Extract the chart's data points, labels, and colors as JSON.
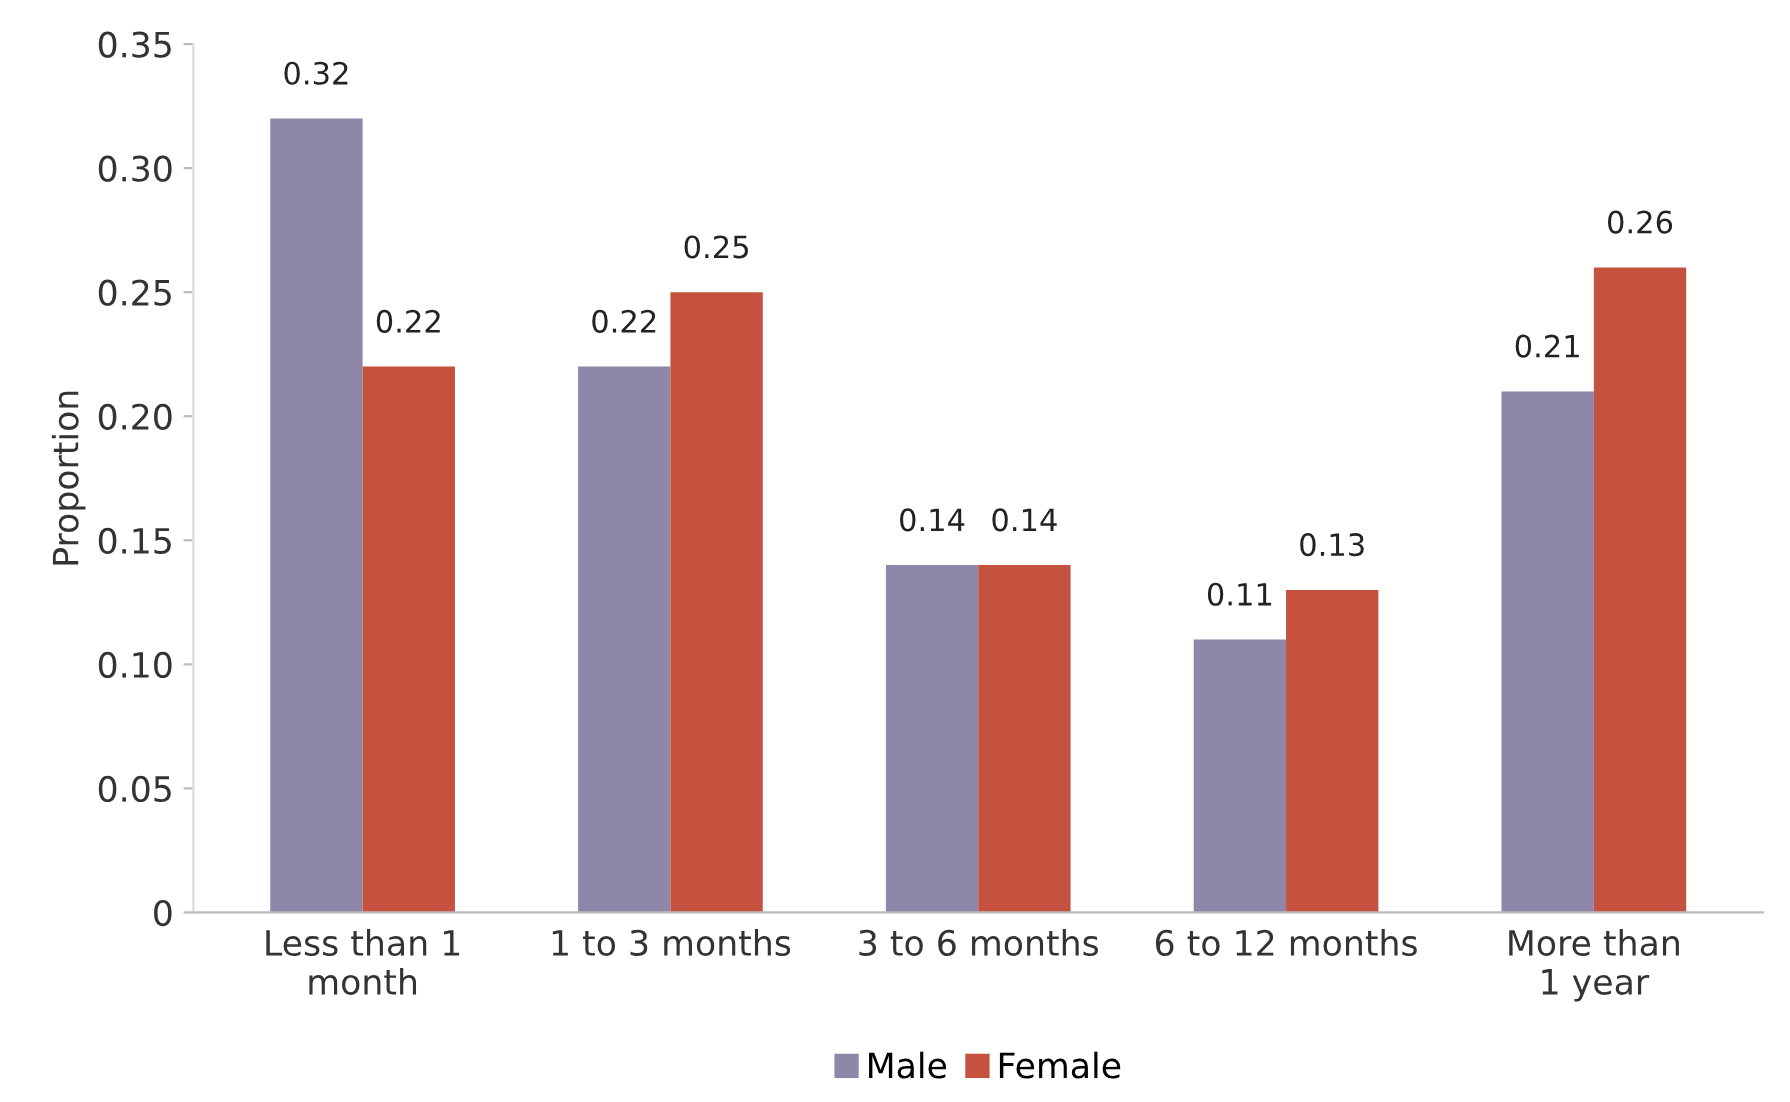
{
  "chart_data": {
    "type": "bar",
    "ylabel": "Proportion",
    "categories": [
      "Less than 1\nmonth",
      "1 to 3 months",
      "3 to 6 months",
      "6 to 12 months",
      "More than\n1 year"
    ],
    "series": [
      {
        "name": "Male",
        "color": "#8e87aa",
        "values": [
          0.32,
          0.22,
          0.14,
          0.11,
          0.21
        ]
      },
      {
        "name": "Female",
        "color": "#c5523f",
        "values": [
          0.22,
          0.25,
          0.14,
          0.13,
          0.26
        ]
      }
    ],
    "ylim": [
      0,
      0.35
    ],
    "yticks": [
      0,
      {
        "value": 0.05,
        "label": "0.05"
      },
      {
        "value": 0.1,
        "label": "0.10"
      },
      {
        "value": 0.15,
        "label": "0.15"
      },
      {
        "value": 0.2,
        "label": "0.20"
      },
      {
        "value": 0.25,
        "label": "0.25"
      },
      {
        "value": 0.3,
        "label": "0.30"
      },
      {
        "value": 0.35,
        "label": "0.35"
      }
    ],
    "data_labels": true,
    "grid": false,
    "legend": "bottom"
  }
}
